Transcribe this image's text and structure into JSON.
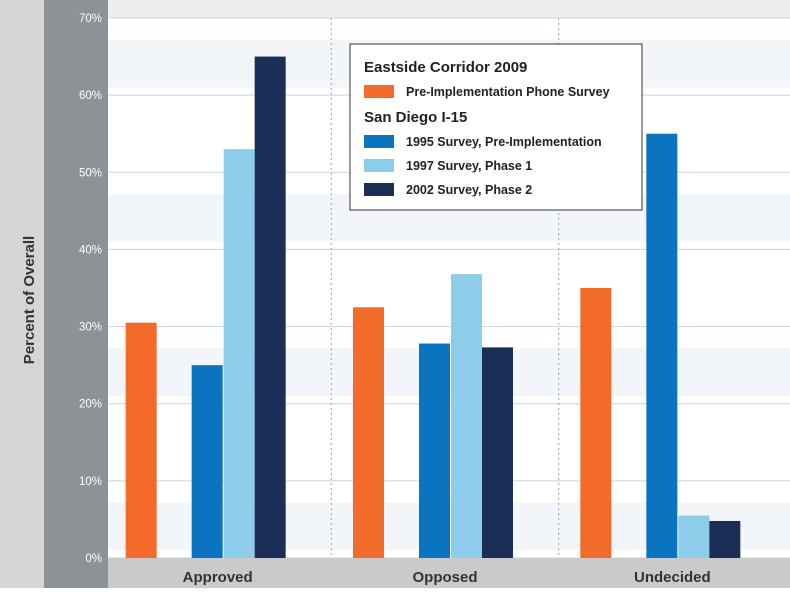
{
  "chart_data": {
    "type": "bar",
    "ylabel": "Percent of Overall",
    "ylim": [
      0,
      70
    ],
    "y_ticks": [
      "0%",
      "10%",
      "20%",
      "30%",
      "40%",
      "50%",
      "60%",
      "70%"
    ],
    "categories": [
      "Approved",
      "Opposed",
      "Undecided"
    ],
    "legend": {
      "placement": "top-center",
      "groups": [
        {
          "title": "Eastside Corridor 2009",
          "entries": [
            "Pre-Implementation Phone Survey"
          ]
        },
        {
          "title": "San Diego I-15",
          "entries": [
            "1995 Survey, Pre-Implementation",
            "1997 Survey, Phase 1",
            "2002 Survey, Phase 2"
          ]
        }
      ]
    },
    "series": [
      {
        "name": "Pre-Implementation Phone Survey",
        "color": "#f26b2a",
        "values": [
          30.5,
          32.5,
          35
        ]
      },
      {
        "name": "1995 Survey, Pre-Implementation",
        "color": "#0a74c0",
        "values": [
          25,
          27.8,
          55
        ]
      },
      {
        "name": "1997 Survey, Phase 1",
        "color": "#8ecdea",
        "values": [
          53,
          36.8,
          5.5
        ]
      },
      {
        "name": "2002 Survey, Phase 2",
        "color": "#1b2e55",
        "values": [
          65,
          27.3,
          4.8
        ]
      }
    ]
  }
}
